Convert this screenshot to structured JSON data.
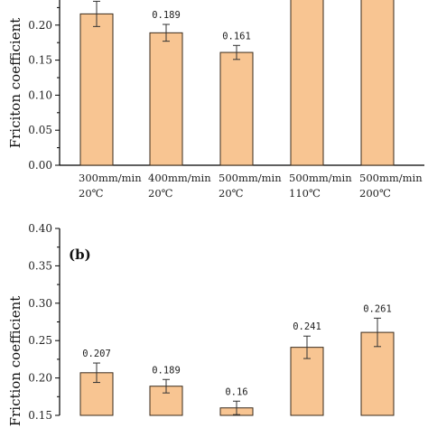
{
  "colors": {
    "bar_fill": "#F8C592",
    "bar_stroke": "#3a2a1a",
    "axis": "#000000"
  },
  "chart_data": [
    {
      "type": "bar",
      "panel": "",
      "ylabel": "Friciton coefficient",
      "ylim": [
        0.0,
        0.25
      ],
      "yticks": [
        "0.00",
        "0.05",
        "0.10",
        "0.15",
        "0.20",
        "0.25"
      ],
      "categories": [
        [
          "300mm/min",
          "20℃"
        ],
        [
          "400mm/min",
          "20℃"
        ],
        [
          "500mm/min",
          "20℃"
        ],
        [
          "500mm/min",
          "110℃"
        ],
        [
          "500mm/min",
          "200℃"
        ]
      ],
      "values": [
        0.216,
        0.189,
        0.161,
        0.25,
        0.25
      ],
      "errors": [
        0.018,
        0.012,
        0.01,
        0,
        0
      ],
      "data_labels": [
        "",
        "0.189",
        "0.161",
        "",
        ""
      ]
    },
    {
      "type": "bar",
      "panel": "(b)",
      "ylabel": "Friction coefficient",
      "ylim": [
        0.15,
        0.4
      ],
      "yticks": [
        "0.15",
        "0.20",
        "0.25",
        "0.30",
        "0.35",
        "0.40"
      ],
      "values": [
        0.207,
        0.189,
        0.16,
        0.241,
        0.261
      ],
      "errors": [
        0.013,
        0.009,
        0.009,
        0.015,
        0.019
      ],
      "data_labels": [
        "0.207",
        "0.189",
        "0.16",
        "0.241",
        "0.261"
      ]
    }
  ]
}
